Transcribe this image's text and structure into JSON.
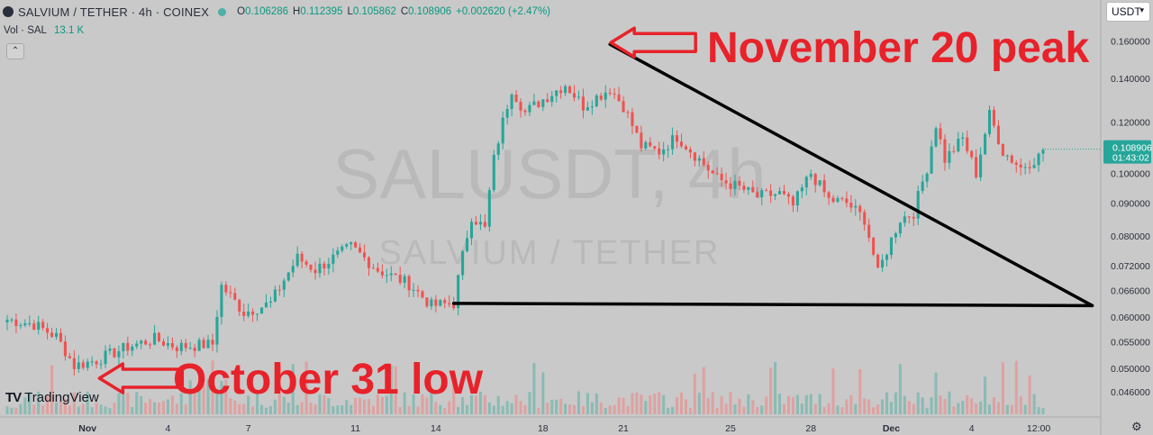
{
  "header": {
    "symbol_title": "SALVIUM / TETHER · 4h · COINEX",
    "open_label": "O",
    "open": "0.106286",
    "high_label": "H",
    "high": "0.112395",
    "low_label": "L",
    "low": "0.105862",
    "close_label": "C",
    "close": "0.108906",
    "change": "+0.002620 (+2.47%)"
  },
  "volume": {
    "label": "Vol · SAL",
    "value": "13.1 K"
  },
  "currency_select": "USDT",
  "watermark": {
    "symbol": "SALUSDT, 4h",
    "name": "SALVIUM / TETHER"
  },
  "price_label": {
    "price": "0.108906",
    "countdown": "01:43:02"
  },
  "logo_text": "TradingView",
  "annotations": {
    "peak": "November 20 peak",
    "low": "October 31 low"
  },
  "colors": {
    "up": "#26a69a",
    "down": "#ef5350",
    "up_vol": "#7fb8b0",
    "down_vol": "#e39a9a",
    "annotation": "#e8222a",
    "background": "#c9c9c9"
  },
  "icons": {
    "status": "status-dot-icon",
    "collapse": "chevron-up-icon",
    "settings": "gear-icon"
  },
  "chart_data": {
    "type": "candlestick",
    "title": "SALVIUM / TETHER · 4h · COINEX",
    "y_ticks": [
      "0.160000",
      "0.140000",
      "0.120000",
      "0.100000",
      "0.090000",
      "0.080000",
      "0.072000",
      "0.066000",
      "0.060000",
      "0.055000",
      "0.050000",
      "0.046000"
    ],
    "y_tick_values": [
      0.16,
      0.14,
      0.12,
      0.1,
      0.09,
      0.08,
      0.072,
      0.066,
      0.06,
      0.055,
      0.05,
      0.046
    ],
    "y_scale": "log",
    "ylim": [
      0.0425,
      0.168
    ],
    "x_ticks": [
      "Nov",
      "4",
      "7",
      "11",
      "14",
      "18",
      "21",
      "25",
      "28",
      "Dec",
      "4",
      "12:00"
    ],
    "x_tick_dates": [
      "2024-11-01",
      "2024-11-04",
      "2024-11-07",
      "2024-11-11",
      "2024-11-14",
      "2024-11-18",
      "2024-11-21",
      "2024-11-25",
      "2024-11-28",
      "2024-12-01",
      "2024-12-04",
      "2024-12-06T12:00"
    ],
    "interval": "4h",
    "time_range": [
      "2024-10-29T00:00",
      "2024-12-06T16:00"
    ],
    "anchors": [
      [
        "2024-10-29T00:00",
        0.0595
      ],
      [
        "2024-10-30T00:00",
        0.0585
      ],
      [
        "2024-10-30T20:00",
        0.056
      ],
      [
        "2024-10-31T12:00",
        0.0505
      ],
      [
        "2024-11-01T08:00",
        0.0515
      ],
      [
        "2024-11-02T12:00",
        0.054
      ],
      [
        "2024-11-03T12:00",
        0.0555
      ],
      [
        "2024-11-04T08:00",
        0.054
      ],
      [
        "2024-11-05T16:00",
        0.0545
      ],
      [
        "2024-11-06T00:00",
        0.067
      ],
      [
        "2024-11-06T20:00",
        0.061
      ],
      [
        "2024-11-07T20:00",
        0.063
      ],
      [
        "2024-11-08T20:00",
        0.074
      ],
      [
        "2024-11-09T12:00",
        0.071
      ],
      [
        "2024-11-10T20:00",
        0.077
      ],
      [
        "2024-11-11T20:00",
        0.071
      ],
      [
        "2024-11-13T00:00",
        0.0675
      ],
      [
        "2024-11-13T20:00",
        0.0625
      ],
      [
        "2024-11-14T16:00",
        0.063
      ],
      [
        "2024-11-15T08:00",
        0.086
      ],
      [
        "2024-11-15T20:00",
        0.082
      ],
      [
        "2024-11-16T04:00",
        0.105
      ],
      [
        "2024-11-16T20:00",
        0.135
      ],
      [
        "2024-11-17T08:00",
        0.124
      ],
      [
        "2024-11-18T00:00",
        0.13
      ],
      [
        "2024-11-18T20:00",
        0.137
      ],
      [
        "2024-11-19T12:00",
        0.127
      ],
      [
        "2024-11-20T12:00",
        0.135
      ],
      [
        "2024-11-21T00:00",
        0.127
      ],
      [
        "2024-11-21T16:00",
        0.11
      ],
      [
        "2024-11-22T08:00",
        0.108
      ],
      [
        "2024-11-23T00:00",
        0.114
      ],
      [
        "2024-11-23T20:00",
        0.105
      ],
      [
        "2024-11-24T12:00",
        0.098
      ],
      [
        "2024-11-25T08:00",
        0.095
      ],
      [
        "2024-11-26T00:00",
        0.092
      ],
      [
        "2024-11-26T20:00",
        0.093
      ],
      [
        "2024-11-27T08:00",
        0.089
      ],
      [
        "2024-11-28T00:00",
        0.1
      ],
      [
        "2024-11-28T16:00",
        0.091
      ],
      [
        "2024-11-29T08:00",
        0.09
      ],
      [
        "2024-11-30T00:00",
        0.085
      ],
      [
        "2024-11-30T12:00",
        0.07
      ],
      [
        "2024-12-01T08:00",
        0.085
      ],
      [
        "2024-12-01T20:00",
        0.087
      ],
      [
        "2024-12-02T08:00",
        0.102
      ],
      [
        "2024-12-02T16:00",
        0.119
      ],
      [
        "2024-12-03T00:00",
        0.105
      ],
      [
        "2024-12-03T16:00",
        0.113
      ],
      [
        "2024-12-04T04:00",
        0.1
      ],
      [
        "2024-12-04T16:00",
        0.123
      ],
      [
        "2024-12-05T04:00",
        0.108
      ],
      [
        "2024-12-05T20:00",
        0.102
      ],
      [
        "2024-12-06T12:00",
        0.106
      ],
      [
        "2024-12-06T16:00",
        0.1089
      ]
    ],
    "volume_series": {
      "name": "Vol · SAL",
      "ylim": [
        0,
        140
      ]
    },
    "trendlines": [
      {
        "name": "descending",
        "from": [
          "2024-11-20T12:00",
          0.158
        ],
        "to": [
          "2024-12-08T12:00",
          0.0625
        ]
      },
      {
        "name": "support",
        "from": [
          "2024-11-14T16:00",
          0.063
        ],
        "to": [
          "2024-12-08T12:00",
          0.0625
        ]
      }
    ],
    "annotations": [
      {
        "text": "November 20 peak",
        "at": [
          "2024-11-20T12:00",
          0.158
        ]
      },
      {
        "text": "October 31 low",
        "at": [
          "2024-10-31T12:00",
          0.0495
        ]
      }
    ]
  }
}
